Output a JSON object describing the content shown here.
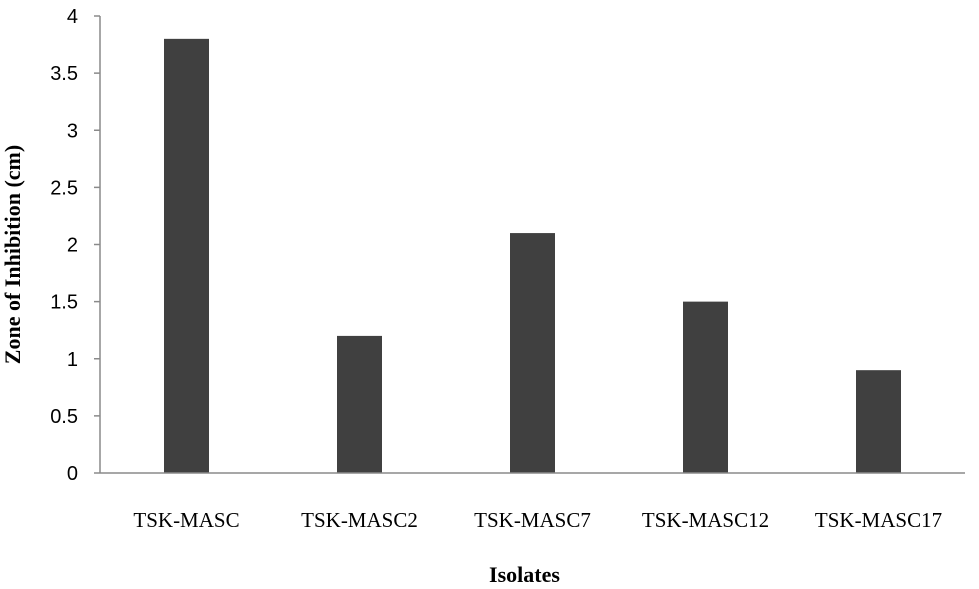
{
  "chart_data": {
    "type": "bar",
    "title": "",
    "xlabel": "Isolates",
    "ylabel": "Zone of Inhibition (cm)",
    "categories": [
      "TSK-MASC",
      "TSK-MASC2",
      "TSK-MASC7",
      "TSK-MASC12",
      "TSK-MASC17"
    ],
    "values": [
      3.8,
      1.2,
      2.1,
      1.5,
      0.9
    ],
    "ylim": [
      0,
      4
    ],
    "yticks": [
      "0",
      "0.5",
      "1",
      "1.5",
      "2",
      "2.5",
      "3",
      "3.5",
      "4"
    ],
    "grid": false,
    "legend": "none",
    "bar_color": "#404040"
  }
}
